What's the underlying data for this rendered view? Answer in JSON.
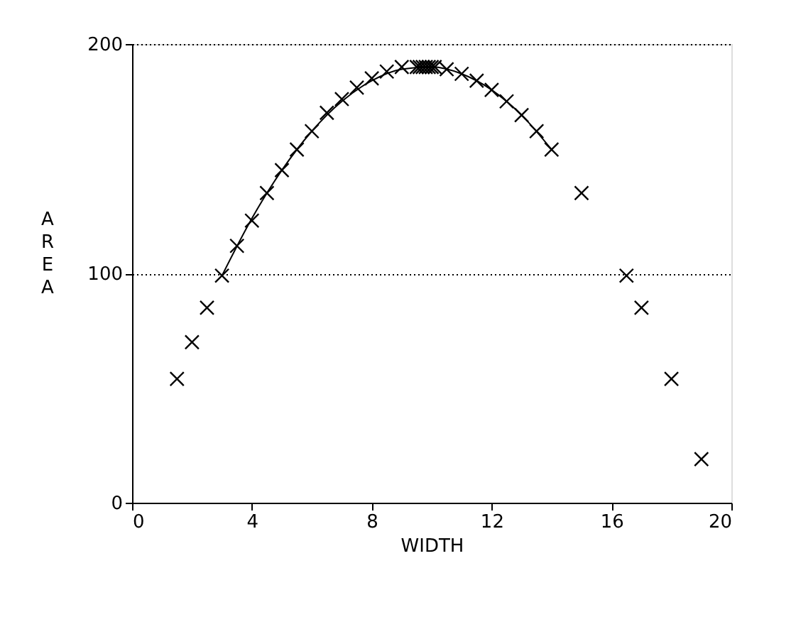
{
  "chart_data": {
    "type": "scatter",
    "xlabel": "WIDTH",
    "ylabel": "AREA",
    "xlim": [
      0,
      20
    ],
    "xticks": [
      0,
      4,
      8,
      12,
      16,
      20
    ],
    "ylim": [
      0,
      200
    ],
    "yticks": [
      0,
      100,
      200
    ],
    "grid": "y",
    "series": [
      {
        "color": "#000000",
        "marker": "cross",
        "x": [
          1.5,
          2,
          2.5,
          3,
          3.5,
          4,
          4.5,
          5,
          5.5,
          6,
          6.5,
          7,
          7.5,
          8,
          8.5,
          9,
          9.5,
          9.6,
          9.7,
          9.8,
          9.9,
          10,
          10.1,
          10.5,
          11,
          11.5,
          12,
          12.5,
          13,
          13.5,
          14,
          15,
          16.5,
          17,
          18,
          19
        ],
        "values": [
          54,
          70,
          85,
          99,
          112,
          123,
          135,
          145,
          154,
          162,
          170,
          176,
          181,
          185,
          188,
          190,
          190,
          190,
          190,
          190,
          190,
          190,
          190,
          189,
          187,
          184,
          180,
          175,
          169,
          162,
          154,
          135,
          99,
          85,
          54,
          19
        ]
      },
      {
        "type": "line",
        "marker": "none",
        "color": "#000000",
        "x": [
          3,
          4,
          5,
          6,
          7,
          8,
          9,
          10,
          11,
          12,
          13,
          14
        ],
        "values": [
          99,
          124,
          145,
          162,
          175,
          184,
          189,
          190,
          187,
          180,
          169,
          154
        ]
      }
    ]
  }
}
